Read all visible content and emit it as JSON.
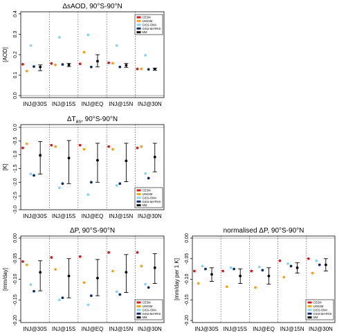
{
  "colors": {
    "CESM": "#d7191c",
    "UKESM": "#f4a21b",
    "GISS-OMA": "#86d3f3",
    "GISS-MATRIX": "#102a6b",
    "MM": "#000000"
  },
  "chart_data": [
    {
      "type": "scatter",
      "title": "ΔsAOD, 90°S-90°N",
      "ylabel": "[AOD]",
      "ylim": [
        -0.01,
        0.41
      ],
      "yticks": [
        "0.0",
        "0.1",
        "0.2",
        "0.3",
        "0.4"
      ],
      "categories": [
        "INJ@30S",
        "INJ@15S",
        "INJ@EQ",
        "INJ@15N",
        "INJ@30N"
      ],
      "legend": [
        "CESM",
        "UKESM",
        "GISS-OMA",
        "GISS-MATRIX",
        "MM"
      ],
      "legend_position": "top-right",
      "series": [
        {
          "name": "CESM",
          "values": [
            0.153,
            0.157,
            0.155,
            0.16,
            0.13
          ]
        },
        {
          "name": "UKESM",
          "values": [
            0.12,
            0.15,
            0.212,
            0.158,
            0.13
          ]
        },
        {
          "name": "GISS-OMA",
          "values": [
            0.245,
            0.285,
            0.297,
            0.245,
            0.197
          ]
        },
        {
          "name": "GISS-MATRIX",
          "values": [
            0.142,
            0.152,
            0.14,
            0.14,
            0.128
          ]
        }
      ],
      "mm": {
        "mean": [
          0.14,
          0.15,
          0.168,
          0.148,
          0.13
        ],
        "low": [
          0.122,
          0.142,
          0.14,
          0.138,
          0.124
        ],
        "high": [
          0.15,
          0.157,
          0.2,
          0.157,
          0.134
        ]
      }
    },
    {
      "type": "scatter",
      "title": "ΔT",
      "title_sub": "as",
      "title_rest": ", 90°S-90°N",
      "ylabel": "[K]",
      "ylim": [
        -3.0,
        0.1
      ],
      "yticks": [
        "-3.0",
        "-2.5",
        "-2.0",
        "-1.5",
        "-1.0",
        "-0.5",
        "0.0"
      ],
      "categories": [
        "INJ@30S",
        "INJ@15S",
        "INJ@EQ",
        "INJ@15N",
        "INJ@30N"
      ],
      "legend": [
        "CESM",
        "UKESM",
        "GISS-OMA",
        "GISS-MATRIX",
        "MM"
      ],
      "legend_position": "bottom-right",
      "series": [
        {
          "name": "CESM",
          "values": [
            -0.75,
            -0.65,
            -0.65,
            -0.7,
            -0.75
          ]
        },
        {
          "name": "UKESM",
          "values": [
            -0.6,
            -0.7,
            -0.8,
            -0.8,
            -0.7
          ]
        },
        {
          "name": "GISS-OMA",
          "values": [
            -1.7,
            -2.2,
            -2.45,
            -2.12,
            -1.68
          ]
        },
        {
          "name": "GISS-MATRIX",
          "values": [
            -1.75,
            -2.05,
            -2.0,
            -2.05,
            -1.85
          ]
        }
      ],
      "mm": {
        "mean": [
          -1.02,
          -1.12,
          -1.2,
          -1.22,
          -1.08
        ],
        "low": [
          -1.7,
          -2.05,
          -2.0,
          -1.98,
          -1.62
        ],
        "high": [
          -0.52,
          -0.48,
          -0.58,
          -0.58,
          -0.58
        ]
      }
    },
    {
      "type": "scatter",
      "title": "ΔP, 90°S-90°N",
      "ylabel": "[mm/day]",
      "ylim": [
        -0.205,
        0.005
      ],
      "yticks": [
        "-0.20",
        "-0.15",
        "-0.10",
        "-0.05",
        "0.00"
      ],
      "categories": [
        "INJ@30S",
        "INJ@15S",
        "INJ@EQ",
        "INJ@15N",
        "INJ@30N"
      ],
      "legend": [
        "CESM",
        "UKESM",
        "GISS-OMA",
        "GISS-MATRIX",
        "MM"
      ],
      "legend_position": "bottom-right",
      "series": [
        {
          "name": "CESM",
          "values": [
            -0.057,
            -0.047,
            -0.045,
            -0.035,
            -0.035
          ]
        },
        {
          "name": "UKESM",
          "values": [
            -0.065,
            -0.076,
            -0.108,
            -0.08,
            -0.068
          ]
        },
        {
          "name": "GISS-OMA",
          "values": [
            -0.113,
            -0.15,
            -0.162,
            -0.13,
            -0.112
          ]
        },
        {
          "name": "GISS-MATRIX",
          "values": [
            -0.129,
            -0.145,
            -0.14,
            -0.137,
            -0.12
          ]
        }
      ],
      "mm": {
        "mean": [
          -0.083,
          -0.092,
          -0.097,
          -0.083,
          -0.072
        ],
        "low": [
          -0.128,
          -0.145,
          -0.14,
          -0.132,
          -0.11
        ],
        "high": [
          -0.055,
          -0.05,
          -0.052,
          -0.04,
          -0.038
        ]
      }
    },
    {
      "type": "scatter",
      "title": "normalised ΔP, 90°S-90°N",
      "ylabel": "[mm/day per 1 K]",
      "ylim": [
        -0.205,
        0.005
      ],
      "yticks": [
        "-0.20",
        "-0.15",
        "-0.10",
        "-0.05",
        "0.00"
      ],
      "categories": [
        "INJ@30S",
        "INJ@15S",
        "INJ@EQ",
        "INJ@15N",
        "INJ@30N"
      ],
      "legend": [
        "CESM",
        "UKESM",
        "GISS-OMA",
        "GISS-MATRIX",
        "MM"
      ],
      "legend_position": "bottom-right",
      "series": [
        {
          "name": "CESM",
          "values": [
            -0.08,
            -0.08,
            -0.08,
            -0.055,
            -0.05
          ]
        },
        {
          "name": "UKESM",
          "values": [
            -0.11,
            -0.118,
            -0.12,
            -0.095,
            -0.085
          ]
        },
        {
          "name": "GISS-OMA",
          "values": [
            -0.068,
            -0.072,
            -0.07,
            -0.062,
            -0.055
          ]
        },
        {
          "name": "GISS-MATRIX",
          "values": [
            -0.075,
            -0.075,
            -0.078,
            -0.068,
            -0.065
          ]
        }
      ],
      "mm": {
        "mean": [
          -0.088,
          -0.092,
          -0.092,
          -0.072,
          -0.065
        ],
        "low": [
          -0.105,
          -0.11,
          -0.112,
          -0.085,
          -0.08
        ],
        "high": [
          -0.072,
          -0.075,
          -0.072,
          -0.06,
          -0.05
        ]
      }
    }
  ]
}
